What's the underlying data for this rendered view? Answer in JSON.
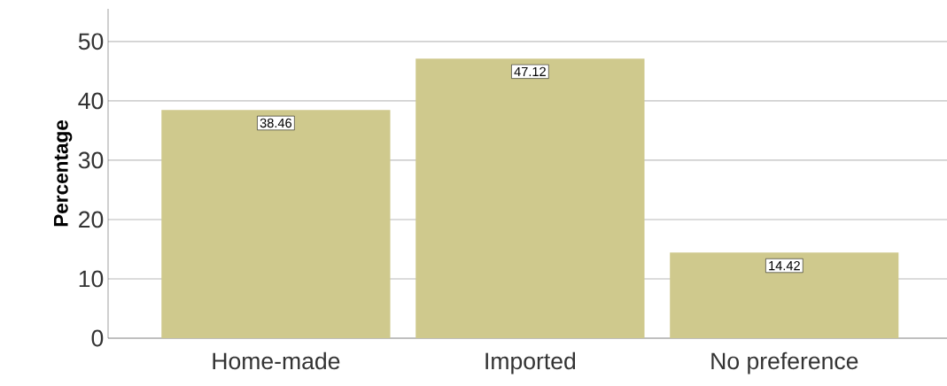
{
  "chart_data": {
    "type": "bar",
    "ylabel": "Percentage",
    "categories": [
      "Home-made",
      "Imported",
      "No preference"
    ],
    "values": [
      38.46,
      47.12,
      14.42
    ],
    "color": "#cfc98d",
    "ylim": [
      0,
      55.5
    ],
    "yticks": [
      0,
      10,
      20,
      30,
      40,
      50
    ],
    "grid": "y",
    "data_labels": true
  }
}
